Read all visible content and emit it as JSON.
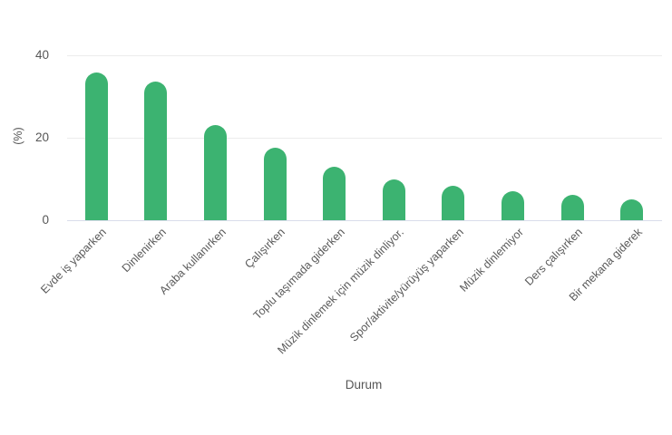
{
  "chart_data": {
    "type": "bar",
    "categories": [
      "Evde iş yaparken",
      "Dinlenirken",
      "Araba kullanırken",
      "Çalışırken",
      "Toplu taşımada giderken",
      "Müzik dinlemek için müzik dinliyor.",
      "Spor/aktivite/yürüyüş yaparken",
      "Müzik dinlemiyor",
      "Ders çalışırken",
      "Bir mekana giderek"
    ],
    "values": [
      35.8,
      33.7,
      23.0,
      17.5,
      12.9,
      10.0,
      8.3,
      7.1,
      6.2,
      5.1
    ],
    "xlabel": "Durum",
    "ylabel": "(%)",
    "ylim": [
      0,
      44
    ],
    "yticks": [
      0,
      20,
      40
    ],
    "grid": true,
    "legend_position": "none",
    "bar_color": "#3cb371",
    "colors": {
      "gridline": "#ececec",
      "axis_line": "#d9ddeb",
      "text": "#565656",
      "background": "#ffffff"
    }
  }
}
